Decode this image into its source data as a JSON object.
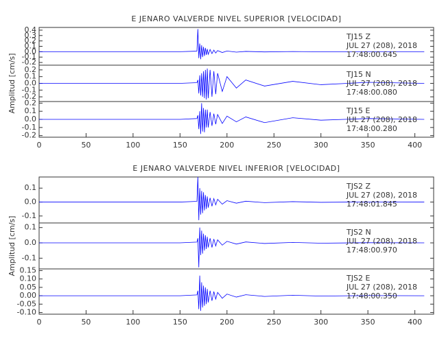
{
  "chart_data": [
    {
      "type": "line",
      "title": "E JENARO VALVERDE NIVEL SUPERIOR [VELOCIDAD]",
      "annotations": [
        "TJ15   Z",
        "JUL 27 (208), 2018",
        "17:48:00.645"
      ],
      "color": "#0000ff",
      "x": [
        0,
        50,
        100,
        150,
        168,
        169,
        170,
        171,
        172,
        173,
        174,
        175,
        176,
        177,
        178,
        179,
        180,
        182,
        184,
        186,
        188,
        190,
        195,
        200,
        210,
        220,
        240,
        270,
        300,
        350,
        410
      ],
      "values": [
        0,
        0,
        0,
        0,
        0.01,
        0.42,
        -0.12,
        0.15,
        -0.14,
        0.12,
        -0.1,
        0.09,
        -0.08,
        0.07,
        -0.06,
        0.05,
        -0.05,
        0.04,
        -0.035,
        0.03,
        -0.025,
        0.02,
        -0.015,
        0.012,
        -0.008,
        0.005,
        -0.004,
        0.003,
        -0.002,
        0.001,
        0
      ],
      "xlim": [
        0,
        420
      ],
      "ylim": [
        -0.25,
        0.45
      ],
      "yticks": [
        0.4,
        0.3,
        0.2,
        0.1,
        {
          "value": 0,
          "label": "0.0"
        },
        -0.1,
        -0.2
      ]
    },
    {
      "type": "line",
      "y_label": "Amplitud [cm/s]",
      "annotations": [
        "TJ15   N",
        "JUL 27 (208), 2018",
        "17:48:00.080"
      ],
      "color": "#0000ff",
      "x": [
        0,
        50,
        100,
        150,
        168,
        169,
        170,
        171,
        172,
        173,
        174,
        175,
        176,
        177,
        178,
        179,
        180,
        182,
        184,
        186,
        188,
        190,
        195,
        200,
        210,
        220,
        240,
        270,
        300,
        350,
        410
      ],
      "values": [
        0,
        0,
        0,
        0,
        0.01,
        0.05,
        -0.15,
        0.12,
        -0.18,
        0.15,
        -0.2,
        0.18,
        -0.22,
        0.2,
        -0.24,
        0.22,
        -0.22,
        0.2,
        -0.2,
        0.18,
        -0.16,
        0.15,
        -0.12,
        0.1,
        -0.07,
        0.05,
        -0.04,
        0.03,
        -0.02,
        0.015,
        0
      ],
      "xlim": [
        0,
        420
      ],
      "ylim": [
        -0.27,
        0.27
      ],
      "yticks": [
        0.2,
        0.1,
        {
          "value": 0,
          "label": "0.0"
        },
        -0.1,
        -0.2
      ]
    },
    {
      "type": "line",
      "annotations": [
        "TJ15   E",
        "JUL 27 (208), 2018",
        "17:48:00.280"
      ],
      "color": "#0000ff",
      "x": [
        0,
        50,
        100,
        150,
        168,
        169,
        170,
        171,
        172,
        173,
        174,
        175,
        176,
        177,
        178,
        179,
        180,
        182,
        184,
        186,
        188,
        190,
        195,
        200,
        210,
        220,
        240,
        270,
        300,
        350,
        410
      ],
      "values": [
        0,
        0,
        0,
        0,
        0.01,
        0.05,
        -0.12,
        0.1,
        -0.18,
        0.2,
        -0.15,
        0.14,
        -0.16,
        0.12,
        -0.1,
        0.12,
        -0.1,
        0.09,
        -0.08,
        0.07,
        -0.06,
        0.06,
        -0.05,
        0.04,
        -0.03,
        0.03,
        -0.04,
        0.02,
        -0.01,
        0.01,
        0
      ],
      "xlim": [
        0,
        420
      ],
      "ylim": [
        -0.22,
        0.22
      ],
      "yticks": [
        0.2,
        0.1,
        {
          "value": 0,
          "label": "0.0"
        },
        -0.1,
        -0.2
      ],
      "xticks": [
        0,
        50,
        100,
        150,
        200,
        250,
        300,
        350,
        400
      ]
    },
    {
      "type": "line",
      "title": "E JENARO VALVERDE NIVEL INFERIOR [VELOCIDAD]",
      "annotations": [
        "TJS2   Z",
        "JUL 27 (208), 2018",
        "17:48:01.845"
      ],
      "color": "#0000ff",
      "x": [
        0,
        50,
        100,
        150,
        168,
        169,
        170,
        171,
        172,
        173,
        174,
        175,
        176,
        177,
        178,
        179,
        180,
        182,
        184,
        186,
        188,
        190,
        195,
        200,
        210,
        220,
        240,
        270,
        300,
        350,
        410
      ],
      "values": [
        0,
        0,
        0,
        0,
        0.005,
        0.18,
        -0.13,
        0.1,
        -0.09,
        0.08,
        -0.08,
        0.07,
        -0.06,
        0.05,
        -0.05,
        0.04,
        -0.04,
        0.03,
        -0.03,
        0.025,
        -0.02,
        0.02,
        -0.015,
        0.01,
        -0.008,
        0.006,
        -0.004,
        0.003,
        -0.002,
        0.001,
        0
      ],
      "xlim": [
        0,
        420
      ],
      "ylim": [
        -0.15,
        0.18
      ],
      "yticks": [
        0.1,
        {
          "value": 0,
          "label": "0.0"
        },
        -0.1
      ]
    },
    {
      "type": "line",
      "y_label": "Amplitud [cm/s]",
      "annotations": [
        "TJS2   N",
        "JUL 27 (208), 2018",
        "17:48:00.970"
      ],
      "color": "#0000ff",
      "x": [
        0,
        50,
        100,
        150,
        168,
        169,
        170,
        171,
        172,
        173,
        174,
        175,
        176,
        177,
        178,
        179,
        180,
        182,
        184,
        186,
        188,
        190,
        195,
        200,
        210,
        220,
        240,
        270,
        300,
        350,
        410
      ],
      "values": [
        0,
        0,
        0,
        0,
        0.005,
        0.03,
        -0.16,
        0.1,
        -0.08,
        0.08,
        -0.07,
        0.06,
        -0.05,
        0.05,
        -0.04,
        0.04,
        -0.03,
        0.03,
        -0.03,
        0.025,
        -0.02,
        0.02,
        -0.015,
        0.01,
        -0.008,
        0.006,
        -0.004,
        0.003,
        -0.002,
        0.001,
        0
      ],
      "xlim": [
        0,
        420
      ],
      "ylim": [
        -0.17,
        0.13
      ],
      "yticks": [
        0.1,
        {
          "value": 0,
          "label": "0.0"
        },
        -0.1
      ]
    },
    {
      "type": "line",
      "annotations": [
        "TJS2   E",
        "JUL 27 (208), 2018",
        "17:48:00.350"
      ],
      "color": "#0000ff",
      "x": [
        0,
        50,
        100,
        150,
        168,
        169,
        170,
        171,
        172,
        173,
        174,
        175,
        176,
        177,
        178,
        179,
        180,
        182,
        184,
        186,
        188,
        190,
        195,
        200,
        210,
        220,
        240,
        270,
        300,
        350,
        410
      ],
      "values": [
        0,
        0,
        0,
        0,
        0.005,
        0.03,
        -0.08,
        0.12,
        -0.09,
        0.08,
        -0.07,
        0.06,
        -0.06,
        0.05,
        -0.05,
        0.04,
        -0.04,
        0.03,
        -0.03,
        0.025,
        -0.02,
        0.02,
        -0.015,
        0.01,
        -0.008,
        0.006,
        -0.004,
        0.003,
        -0.002,
        0.001,
        0
      ],
      "xlim": [
        0,
        420
      ],
      "ylim": [
        -0.11,
        0.16
      ],
      "yticks": [
        0.15,
        {
          "value": 0.1,
          "label": "0.10"
        },
        {
          "value": 0.05,
          "label": "0.05"
        },
        {
          "value": 0,
          "label": "0.00"
        },
        -0.05,
        {
          "value": -0.1,
          "label": "-0.10"
        }
      ],
      "xticks": [
        0,
        50,
        100,
        150,
        200,
        250,
        300,
        350,
        400
      ]
    }
  ]
}
